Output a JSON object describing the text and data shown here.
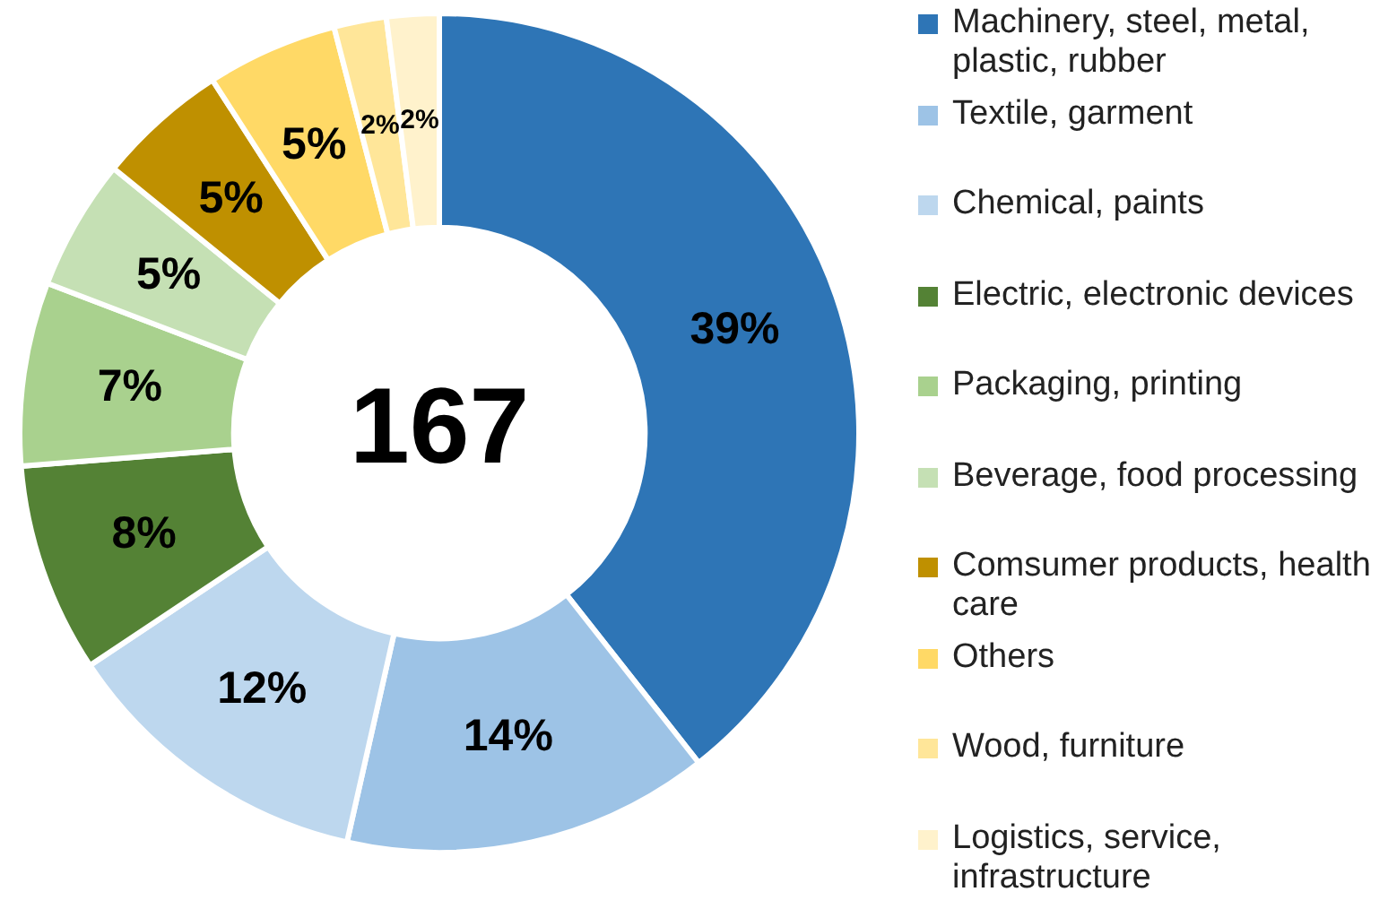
{
  "chart_data": {
    "type": "donut",
    "categories": [
      "Machinery, steel, metal, plastic, rubber",
      "Textile, garment",
      "Chemical, paints",
      "Electric, electronic devices",
      "Packaging, printing",
      "Beverage, food processing",
      "Comsumer products, health care",
      "Others",
      "Wood, furniture",
      "Logistics, service, infrastructure"
    ],
    "values": [
      39,
      14,
      12,
      8,
      7,
      5,
      5,
      5,
      2,
      2
    ],
    "colors": [
      "#2e75b6",
      "#9dc3e6",
      "#bdd7ee",
      "#548235",
      "#a9d18e",
      "#c5e0b4",
      "#bf9000",
      "#ffd966",
      "#ffe699",
      "#fff2cc"
    ],
    "annotations": [
      "167"
    ],
    "value_labels": [
      "39%",
      "14%",
      "12%",
      "8%",
      "7%",
      "5%",
      "5%",
      "5%",
      "2%",
      "2%"
    ],
    "legend": "right"
  }
}
